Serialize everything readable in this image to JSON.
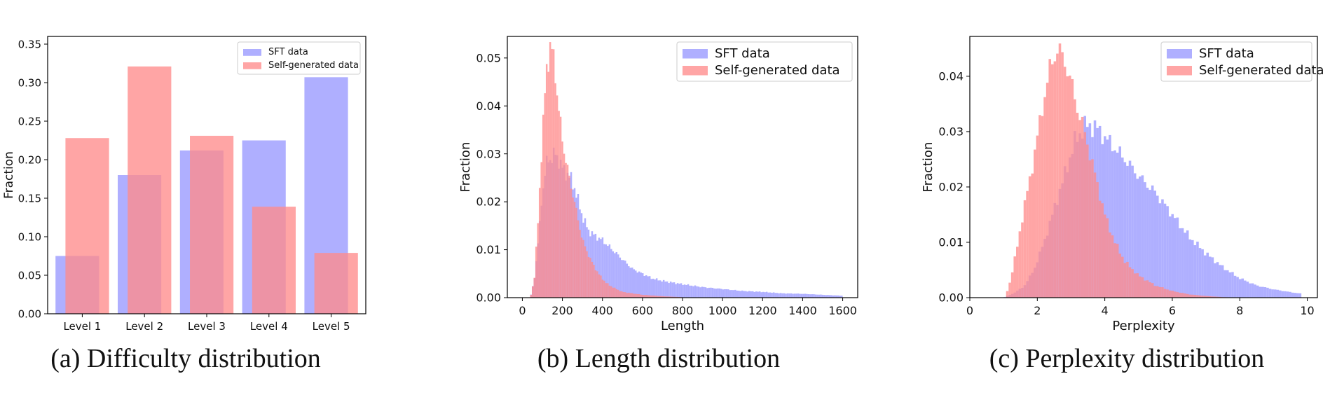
{
  "captions": {
    "a": "(a) Difficulty distribution",
    "b": "(b) Length distribution",
    "c": "(c) Perplexity distribution"
  },
  "colors": {
    "sft": "#9999ff",
    "self": "#ff8c8c"
  },
  "chart_data": [
    {
      "type": "bar",
      "title": "",
      "xlabel": "",
      "ylabel": "Fraction",
      "categories": [
        "Level 1",
        "Level 2",
        "Level 3",
        "Level 4",
        "Level 5"
      ],
      "ylim": [
        0,
        0.36
      ],
      "yticks": [
        0.0,
        0.05,
        0.1,
        0.15,
        0.2,
        0.25,
        0.3,
        0.35
      ],
      "yticklabels": [
        "0.00",
        "0.05",
        "0.10",
        "0.15",
        "0.20",
        "0.25",
        "0.30",
        "0.35"
      ],
      "legend": "top-right",
      "series": [
        {
          "name": "SFT data",
          "values": [
            0.075,
            0.18,
            0.212,
            0.225,
            0.307
          ]
        },
        {
          "name": "Self-generated data",
          "values": [
            0.228,
            0.321,
            0.231,
            0.139,
            0.079
          ]
        }
      ]
    },
    {
      "type": "histogram",
      "title": "",
      "xlabel": "Length",
      "ylabel": "Fraction",
      "xlim": [
        -75,
        1675
      ],
      "ylim": [
        0,
        0.0545
      ],
      "xticks": [
        0,
        200,
        400,
        600,
        800,
        1000,
        1200,
        1400,
        1600
      ],
      "xticklabels": [
        "0",
        "200",
        "400",
        "600",
        "800",
        "1000",
        "1200",
        "1400",
        "1600"
      ],
      "yticks": [
        0,
        0.01,
        0.02,
        0.03,
        0.04,
        0.05
      ],
      "yticklabels": [
        "0.00",
        "0.01",
        "0.02",
        "0.03",
        "0.04",
        "0.05"
      ],
      "legend": "top-right",
      "series": [
        {
          "name": "SFT data",
          "x": [
            40,
            60,
            80,
            100,
            120,
            140,
            160,
            180,
            200,
            220,
            240,
            260,
            280,
            300,
            330,
            360,
            400,
            450,
            500,
            550,
            600,
            650,
            700,
            800,
            900,
            1000,
            1100,
            1200,
            1300,
            1400,
            1500,
            1600
          ],
          "y": [
            0,
            0.004,
            0.012,
            0.022,
            0.028,
            0.029,
            0.03,
            0.029,
            0.027,
            0.026,
            0.025,
            0.023,
            0.02,
            0.017,
            0.014,
            0.013,
            0.012,
            0.01,
            0.008,
            0.006,
            0.005,
            0.004,
            0.0035,
            0.0028,
            0.0022,
            0.0018,
            0.0014,
            0.0012,
            0.0009,
            0.0008,
            0.0006,
            0.0004
          ]
        },
        {
          "name": "Self-generated data",
          "x": [
            40,
            60,
            80,
            100,
            120,
            140,
            160,
            180,
            200,
            220,
            250,
            280,
            300,
            340,
            380,
            420,
            460,
            500,
            600,
            700,
            800
          ],
          "y": [
            0,
            0.004,
            0.017,
            0.034,
            0.047,
            0.053,
            0.049,
            0.04,
            0.033,
            0.028,
            0.022,
            0.016,
            0.012,
            0.008,
            0.005,
            0.003,
            0.002,
            0.0012,
            0.0006,
            0.0003,
            0.0001
          ]
        }
      ]
    },
    {
      "type": "histogram",
      "title": "",
      "xlabel": "Perplexity",
      "ylabel": "Fraction",
      "xlim": [
        0,
        10.3
      ],
      "ylim": [
        0,
        0.0472
      ],
      "xticks": [
        0,
        2,
        4,
        6,
        8,
        10
      ],
      "xticklabels": [
        "0",
        "2",
        "4",
        "6",
        "8",
        "10"
      ],
      "yticks": [
        0,
        0.01,
        0.02,
        0.03,
        0.04
      ],
      "yticklabels": [
        "0.00",
        "0.01",
        "0.02",
        "0.03",
        "0.04"
      ],
      "legend": "top-right",
      "series": [
        {
          "name": "SFT data",
          "x": [
            1.0,
            1.3,
            1.6,
            1.9,
            2.2,
            2.5,
            2.8,
            3.1,
            3.4,
            3.7,
            4.0,
            4.3,
            4.6,
            5.0,
            5.5,
            6.0,
            6.5,
            7.0,
            7.5,
            8.0,
            8.5,
            9.0,
            9.5,
            9.85
          ],
          "y": [
            0,
            0.0008,
            0.002,
            0.005,
            0.01,
            0.016,
            0.022,
            0.028,
            0.031,
            0.031,
            0.029,
            0.027,
            0.025,
            0.022,
            0.019,
            0.015,
            0.011,
            0.008,
            0.0055,
            0.0035,
            0.0022,
            0.0015,
            0.001,
            0.0007
          ]
        },
        {
          "name": "Self-generated data",
          "x": [
            1.05,
            1.2,
            1.4,
            1.6,
            1.8,
            2.0,
            2.2,
            2.4,
            2.6,
            2.8,
            3.0,
            3.2,
            3.4,
            3.6,
            3.8,
            4.0,
            4.3,
            4.6,
            5.0,
            5.5,
            6.0,
            6.5,
            7.0,
            7.5,
            8.0
          ],
          "y": [
            0,
            0.003,
            0.009,
            0.016,
            0.022,
            0.029,
            0.036,
            0.042,
            0.045,
            0.043,
            0.039,
            0.034,
            0.03,
            0.025,
            0.02,
            0.015,
            0.01,
            0.0065,
            0.004,
            0.0022,
            0.0012,
            0.0006,
            0.0003,
            0.0001,
            0.0
          ]
        }
      ]
    }
  ]
}
